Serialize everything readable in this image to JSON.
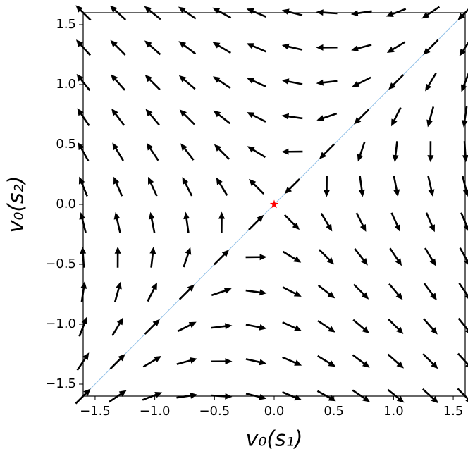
{
  "chart_data": {
    "type": "quiver",
    "xlabel": "v₀(s₁)",
    "ylabel": "v₀(s₂)",
    "xlim": [
      -1.6,
      1.6
    ],
    "ylim": [
      -1.6,
      1.6
    ],
    "xticks": [
      {
        "value": -1.5,
        "label": "−1.5"
      },
      {
        "value": -1,
        "label": "−1.0"
      },
      {
        "value": -0.5,
        "label": "−0.5"
      },
      {
        "value": 0,
        "label": "0.0"
      },
      0.5,
      {
        "value": 1,
        "label": "1.0"
      },
      1.5
    ],
    "yticks": [
      {
        "value": -1.5,
        "label": "−1.5"
      },
      {
        "value": -1,
        "label": "−1.0"
      },
      {
        "value": -0.5,
        "label": "−0.5"
      },
      {
        "value": 0,
        "label": "0.0"
      },
      0.5,
      {
        "value": 1,
        "label": "1.0"
      },
      1.5
    ],
    "color": "#000000",
    "x": [
      -1.6,
      -1.31,
      -1.02,
      -0.73,
      -0.44,
      -0.15,
      0.15,
      0.44,
      0.73,
      1.02,
      1.31,
      1.6
    ],
    "y": [
      -1.6,
      -1.31,
      -1.02,
      -0.73,
      -0.44,
      -0.15,
      0.15,
      0.44,
      0.73,
      1.02,
      1.31,
      1.6
    ],
    "u": [
      [
        3.2,
        3.49,
        3.78,
        4.07,
        4.36,
        4.65,
        4.95,
        5.24,
        5.53,
        5.82,
        6.11,
        6.4
      ],
      [
        2.33,
        2.62,
        2.91,
        3.2,
        3.49,
        3.78,
        4.08,
        4.37,
        4.66,
        4.95,
        5.24,
        5.53
      ],
      [
        1.46,
        1.75,
        2.04,
        2.33,
        2.62,
        2.91,
        3.21,
        3.5,
        3.79,
        4.08,
        4.37,
        4.66
      ],
      [
        0.59,
        0.88,
        1.17,
        1.46,
        1.75,
        2.04,
        2.34,
        2.63,
        2.92,
        3.21,
        3.5,
        3.79
      ],
      [
        -0.28,
        0.01,
        0.3,
        0.59,
        0.88,
        1.17,
        1.47,
        1.76,
        2.05,
        2.34,
        2.63,
        2.92
      ],
      [
        -1.15,
        -0.86,
        -0.57,
        -0.28,
        0.01,
        0.3,
        0.6,
        0.89,
        1.18,
        1.47,
        1.76,
        2.05
      ],
      [
        -2.05,
        -1.76,
        -1.47,
        -1.18,
        -0.89,
        -0.6,
        -0.3,
        -0.01,
        0.28,
        0.57,
        0.86,
        1.15
      ],
      [
        -2.92,
        -2.63,
        -2.34,
        -2.05,
        -1.76,
        -1.47,
        -1.17,
        -0.88,
        -0.59,
        -0.3,
        -0.01,
        0.28
      ],
      [
        -3.79,
        -3.5,
        -3.21,
        -2.92,
        -2.63,
        -2.34,
        -2.04,
        -1.75,
        -1.46,
        -1.17,
        -0.88,
        -0.59
      ],
      [
        -4.66,
        -4.37,
        -4.08,
        -3.79,
        -3.5,
        -3.21,
        -2.91,
        -2.62,
        -2.33,
        -2.04,
        -1.75,
        -1.46
      ],
      [
        -5.53,
        -5.24,
        -4.95,
        -4.66,
        -4.37,
        -4.08,
        -3.78,
        -3.49,
        -3.2,
        -2.91,
        -2.62,
        -2.33
      ],
      [
        -6.4,
        -6.11,
        -5.82,
        -5.53,
        -5.24,
        -4.95,
        -4.65,
        -4.36,
        -4.07,
        -3.78,
        -3.49,
        -3.2
      ]
    ],
    "v": [
      [
        3.2,
        2.33,
        1.46,
        0.59,
        -0.28,
        -1.15,
        -2.05,
        -2.92,
        -3.79,
        -4.66,
        -5.53,
        -6.4
      ],
      [
        3.49,
        2.62,
        1.75,
        0.88,
        0.01,
        -0.86,
        -1.76,
        -2.63,
        -3.5,
        -4.37,
        -5.24,
        -6.11
      ],
      [
        3.78,
        2.91,
        2.04,
        1.17,
        0.3,
        -0.57,
        -1.47,
        -2.34,
        -3.21,
        -4.08,
        -4.95,
        -5.82
      ],
      [
        4.07,
        3.2,
        2.33,
        1.46,
        0.59,
        -0.28,
        -1.18,
        -2.05,
        -2.92,
        -3.79,
        -4.66,
        -5.53
      ],
      [
        4.36,
        3.49,
        2.62,
        1.75,
        0.88,
        0.01,
        -0.89,
        -1.76,
        -2.63,
        -3.5,
        -4.37,
        -5.24
      ],
      [
        4.65,
        3.78,
        2.91,
        2.04,
        1.17,
        0.3,
        -0.6,
        -1.47,
        -2.34,
        -3.21,
        -4.08,
        -4.95
      ],
      [
        4.95,
        4.08,
        3.21,
        2.34,
        1.47,
        0.6,
        -0.3,
        -1.17,
        -2.04,
        -2.91,
        -3.78,
        -4.65
      ],
      [
        5.24,
        4.37,
        3.5,
        2.63,
        1.76,
        0.89,
        -0.01,
        -0.88,
        -1.75,
        -2.62,
        -3.49,
        -4.36
      ],
      [
        5.53,
        4.66,
        3.79,
        2.92,
        2.05,
        1.18,
        0.28,
        -0.59,
        -1.46,
        -2.33,
        -3.2,
        -4.07
      ],
      [
        5.82,
        4.95,
        4.08,
        3.21,
        2.34,
        1.47,
        0.57,
        -0.3,
        -1.17,
        -2.04,
        -2.91,
        -3.78
      ],
      [
        6.11,
        5.24,
        4.37,
        3.5,
        2.63,
        1.76,
        0.86,
        -0.01,
        -0.88,
        -1.75,
        -2.62,
        -3.49
      ],
      [
        6.4,
        5.53,
        4.66,
        3.79,
        2.92,
        2.05,
        1.15,
        0.28,
        -0.59,
        -1.46,
        -2.33,
        -3.2
      ]
    ],
    "diagonal": {
      "color": "#8fbfe8",
      "x": [
        -1.6,
        1.6
      ],
      "y": [
        -1.6,
        1.6
      ]
    },
    "fixed_point": {
      "color": "#ff0000",
      "x": 0,
      "y": 0
    }
  }
}
